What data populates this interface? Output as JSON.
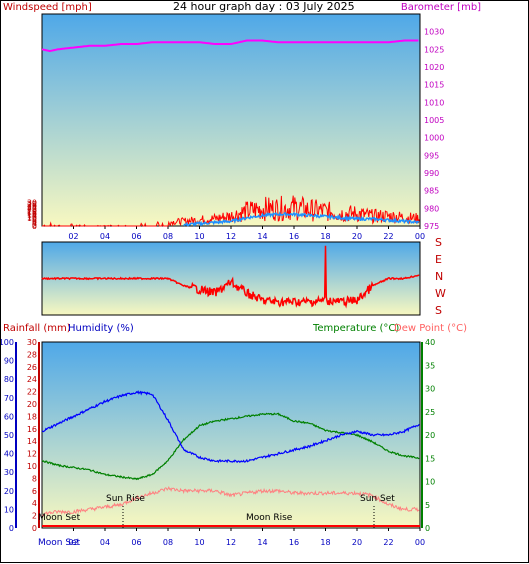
{
  "title": "24 hour graph day : 03 July 2025",
  "colors": {
    "wind": "#ff0000",
    "gust_avg": "#1e90ff",
    "baro": "#ff00ff",
    "dir": "#ff0000",
    "rain": "#ff0000",
    "humidity": "#0000ff",
    "temperature": "#008000",
    "dewpoint": "#ff8080",
    "sky_top": "#4fa8e8",
    "sky_bottom": "#f8f8c0"
  },
  "chart_data": [
    {
      "type": "line",
      "title": "24 hour graph day : 03 July 2025",
      "y_left_label": "Windspeed [mph]",
      "y_right_label": "Barometer [mb]",
      "x_ticks": [
        "02",
        "04",
        "06",
        "08",
        "10",
        "12",
        "14",
        "16",
        "18",
        "20",
        "22",
        "00"
      ],
      "y_left_ticks": [
        "0",
        "2",
        "4",
        "6",
        "8",
        "10",
        "12",
        "14",
        "16",
        "18",
        "20",
        "22",
        "24",
        "26",
        "28",
        "30",
        "32",
        "34",
        "36",
        "38",
        "40",
        "42",
        "44",
        "46",
        "48",
        "50",
        "52",
        "54",
        "56",
        "58",
        "60",
        "62",
        "64",
        "66",
        "68",
        "70",
        "72",
        "74",
        "76",
        "78",
        "80",
        "82",
        "84",
        "86",
        "88",
        "90"
      ],
      "y_left_ticks_shown": [
        "0",
        "2",
        "4",
        "6",
        "8",
        "10",
        "12",
        "14",
        "16",
        "18",
        "20",
        "22",
        "24",
        "26",
        "28",
        "30",
        "32",
        "34",
        "36",
        "38",
        "40",
        "42",
        "44",
        "46",
        "48",
        "50",
        "52",
        "54",
        "56",
        "58",
        "60",
        "62",
        "64",
        "66",
        "68",
        "70",
        "72",
        "74",
        "76",
        "78",
        "80",
        "82",
        "84",
        "86",
        "88",
        "90"
      ],
      "y_left_range": [
        0,
        90
      ],
      "y_right_range": [
        975,
        1035
      ],
      "y_right_ticks": [
        "975",
        "980",
        "985",
        "990",
        "995",
        "1000",
        "1005",
        "1010",
        "1015",
        "1020",
        "1025",
        "1030"
      ],
      "x_range_hours": [
        0,
        24
      ],
      "series": [
        {
          "name": "Windspeed",
          "x": [
            0,
            1,
            2,
            3,
            4,
            5,
            6,
            7,
            8,
            9,
            10,
            11,
            12,
            13,
            14,
            15,
            16,
            17,
            18,
            19,
            20,
            21,
            22,
            23,
            24
          ],
          "values": [
            1,
            0.5,
            0.5,
            0.3,
            0.2,
            0.3,
            0.5,
            1,
            1.5,
            2,
            2.5,
            3,
            4,
            6,
            7,
            7,
            7.5,
            6.5,
            6,
            5,
            5,
            4,
            4,
            3.5,
            3
          ]
        },
        {
          "name": "Gust average",
          "x": [
            9,
            10,
            11,
            12,
            13,
            14,
            15,
            16,
            17,
            18,
            19,
            20,
            21,
            22,
            23,
            24
          ],
          "values": [
            0.5,
            1,
            1.5,
            2,
            3.5,
            4.5,
            5,
            5,
            4.5,
            4,
            3.5,
            3,
            3,
            2.5,
            2,
            1.5
          ]
        },
        {
          "name": "Barometer",
          "x": [
            0,
            0.5,
            1,
            2,
            3,
            4,
            5,
            6,
            7,
            8,
            9,
            10,
            11,
            12,
            13,
            14,
            15,
            16,
            17,
            18,
            19,
            20,
            21,
            22,
            23,
            24
          ],
          "values": [
            1025,
            1024.5,
            1025,
            1025.5,
            1026,
            1026,
            1026.5,
            1026.5,
            1027,
            1027,
            1027,
            1027,
            1026.5,
            1026.5,
            1027.5,
            1027.5,
            1027,
            1027,
            1027,
            1027,
            1027,
            1027,
            1027,
            1027,
            1027.5,
            1027.5
          ]
        }
      ]
    },
    {
      "type": "line",
      "y_right_labels": [
        "S",
        "E",
        "N",
        "W",
        "S"
      ],
      "x_range_hours": [
        0,
        24
      ],
      "series": [
        {
          "name": "Wind direction",
          "x": [
            0,
            1,
            2,
            3,
            4,
            5,
            6,
            7,
            8,
            9,
            10,
            11,
            12,
            13,
            14,
            15,
            16,
            17,
            18,
            19,
            20,
            21,
            22,
            23,
            24
          ],
          "values": [
            0.5,
            0.5,
            0.5,
            0.5,
            0.5,
            0.5,
            0.5,
            0.5,
            0.5,
            0.6,
            0.65,
            0.7,
            0.55,
            0.7,
            0.8,
            0.82,
            0.82,
            0.82,
            0.8,
            0.82,
            0.8,
            0.6,
            0.5,
            0.5,
            0.45
          ]
        }
      ]
    },
    {
      "type": "line",
      "y_left_outer_label": "Rainfall (mm)",
      "y_left_inner_label": "Humidity (%)",
      "y_right_label": "Temperature (°C)",
      "y_right_label2": "Dew Point (°C)",
      "rain_ticks": [
        "0",
        "2",
        "4",
        "6",
        "8",
        "10",
        "12",
        "14",
        "16",
        "18",
        "20",
        "22",
        "24",
        "26",
        "28",
        "30"
      ],
      "humidity_ticks": [
        "0",
        "10",
        "20",
        "30",
        "40",
        "50",
        "60",
        "70",
        "80",
        "90",
        "100"
      ],
      "temp_ticks": [
        "0",
        "5",
        "10",
        "15",
        "20",
        "25",
        "30",
        "35",
        "40"
      ],
      "x_ticks": [
        "02",
        "04",
        "06",
        "08",
        "10",
        "12",
        "14",
        "16",
        "18",
        "20",
        "22",
        "00"
      ],
      "annotations": {
        "moon_set": "Moon Set",
        "sun_rise": "Sun Rise",
        "moon_rise": "Moon Rise",
        "sun_set": "Sun Set",
        "moon_set_axis": "Moon Set"
      },
      "series": [
        {
          "name": "Humidity",
          "x": [
            0,
            1,
            2,
            3,
            4,
            5,
            6,
            7,
            8,
            9,
            10,
            11,
            12,
            13,
            14,
            15,
            16,
            17,
            18,
            19,
            20,
            21,
            22,
            23,
            24
          ],
          "values": [
            52,
            56,
            60,
            64,
            68,
            71,
            73,
            72,
            58,
            42,
            38,
            36,
            36,
            36,
            38,
            40,
            42,
            44,
            47,
            50,
            52,
            50,
            50,
            52,
            56
          ]
        },
        {
          "name": "Temperature",
          "x": [
            0,
            1,
            2,
            3,
            4,
            5,
            6,
            7,
            8,
            9,
            10,
            11,
            12,
            13,
            14,
            15,
            16,
            17,
            18,
            19,
            20,
            21,
            22,
            23,
            24
          ],
          "values": [
            14.5,
            13.5,
            13,
            12.5,
            11.5,
            11,
            10.5,
            11.5,
            14.5,
            19,
            22,
            23,
            23.5,
            24,
            24.5,
            24.5,
            23,
            22.5,
            21,
            20.5,
            20,
            18.5,
            16.5,
            15.5,
            15
          ]
        },
        {
          "name": "Dew Point",
          "x": [
            0,
            1,
            2,
            3,
            4,
            5,
            6,
            7,
            8,
            9,
            10,
            11,
            12,
            13,
            14,
            15,
            16,
            17,
            18,
            19,
            20,
            21,
            22,
            23,
            24
          ],
          "values": [
            3,
            3.5,
            3.5,
            4,
            4.5,
            5,
            6.5,
            7.5,
            8.5,
            8,
            8,
            8,
            7,
            7.5,
            8,
            8,
            7.5,
            7.5,
            7.5,
            7.5,
            7.5,
            7,
            5,
            4,
            4
          ]
        },
        {
          "name": "Rainfall",
          "x": [
            0,
            24
          ],
          "values": [
            0,
            0
          ]
        }
      ]
    }
  ]
}
